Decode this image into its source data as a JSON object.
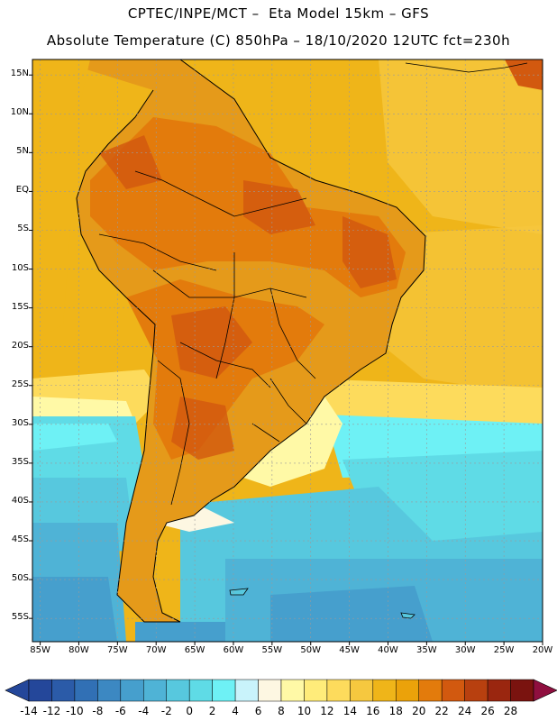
{
  "header": {
    "line1": "CPTEC/INPE/MCT –  Eta Model 15km – GFS",
    "line2": "Absolute Temperature (C) 850hPa – 18/10/2020 12UTC fct=230h"
  },
  "map": {
    "lat_labels": [
      "15N",
      "10N",
      "5N",
      "EQ",
      "5S",
      "10S",
      "15S",
      "20S",
      "25S",
      "30S",
      "35S",
      "40S",
      "45S",
      "50S",
      "55S"
    ],
    "lat_values": [
      15,
      10,
      5,
      0,
      -5,
      -10,
      -15,
      -20,
      -25,
      -30,
      -35,
      -40,
      -45,
      -50,
      -55
    ],
    "lon_labels": [
      "85W",
      "80W",
      "75W",
      "70W",
      "65W",
      "60W",
      "55W",
      "50W",
      "45W",
      "40W",
      "35W",
      "30W",
      "25W",
      "20W"
    ],
    "lon_values": [
      -85,
      -80,
      -75,
      -70,
      -65,
      -60,
      -55,
      -50,
      -45,
      -40,
      -35,
      -30,
      -25,
      -20
    ],
    "extent": {
      "lon_min": -86,
      "lon_max": -20,
      "lat_min": -58,
      "lat_max": 17
    }
  },
  "colorbar": {
    "labels": [
      "-14",
      "-12",
      "-10",
      "-8",
      "-6",
      "-4",
      "-2",
      "0",
      "2",
      "4",
      "6",
      "8",
      "10",
      "12",
      "14",
      "16",
      "18",
      "20",
      "22",
      "24",
      "26",
      "28"
    ],
    "colors": [
      "#24479a",
      "#2b5ba8",
      "#3170b5",
      "#3c88c2",
      "#469fcd",
      "#4fb3d6",
      "#57c8de",
      "#5fdbe6",
      "#6ef1f5",
      "#c9f3fb",
      "#fdf7e2",
      "#fff9a6",
      "#ffec7a",
      "#fddb5c",
      "#f6c83f",
      "#efb519",
      "#eba20a",
      "#e37b0c",
      "#d2590f",
      "#b8400f",
      "#9a260f",
      "#7a130f"
    ],
    "low_color": "#24479a",
    "high_color": "#8f0f3f"
  }
}
